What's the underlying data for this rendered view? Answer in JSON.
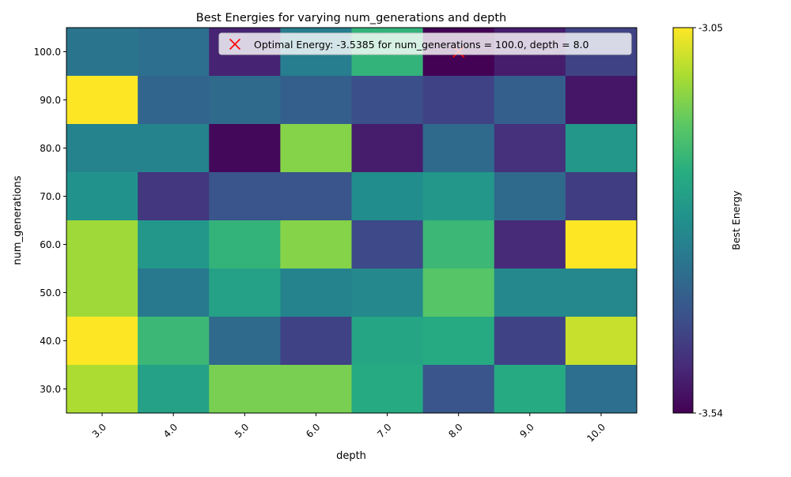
{
  "chart_data": {
    "type": "heatmap",
    "title": "Best Energies for varying num_generations and depth",
    "xlabel": "depth",
    "ylabel": "num_generations",
    "x": [
      "3.0",
      "4.0",
      "5.0",
      "6.0",
      "7.0",
      "8.0",
      "9.0",
      "10.0"
    ],
    "y": [
      "100.0",
      "90.0",
      "80.0",
      "70.0",
      "60.0",
      "50.0",
      "40.0",
      "30.0"
    ],
    "values": [
      [
        -3.35,
        -3.36,
        -3.49,
        -3.33,
        -3.22,
        -3.5385,
        -3.5,
        -3.44
      ],
      [
        -3.05,
        -3.38,
        -3.37,
        -3.39,
        -3.42,
        -3.44,
        -3.39,
        -3.51
      ],
      [
        -3.32,
        -3.32,
        -3.53,
        -3.14,
        -3.5,
        -3.37,
        -3.47,
        -3.28
      ],
      [
        -3.29,
        -3.46,
        -3.41,
        -3.41,
        -3.3,
        -3.28,
        -3.37,
        -3.45
      ],
      [
        -3.12,
        -3.28,
        -3.22,
        -3.14,
        -3.43,
        -3.21,
        -3.48,
        -3.05
      ],
      [
        -3.12,
        -3.34,
        -3.26,
        -3.32,
        -3.31,
        -3.18,
        -3.31,
        -3.31
      ],
      [
        -3.05,
        -3.21,
        -3.37,
        -3.44,
        -3.25,
        -3.24,
        -3.44,
        -3.09
      ],
      [
        -3.11,
        -3.26,
        -3.15,
        -3.15,
        -3.24,
        -3.41,
        -3.24,
        -3.36
      ]
    ],
    "colorbar": {
      "label": "Best Energy",
      "vmin": -3.54,
      "vmax": -3.05,
      "tick_labels": [
        "-3.05",
        "-3.54"
      ],
      "colormap": "viridis"
    },
    "optimal": {
      "depth": 8.0,
      "num_generations": 100.0,
      "legend_label": "Optimal Energy: -3.5385 for num_generations = 100.0, depth = 8.0",
      "marker_color": "#ff0000"
    },
    "legend_position": "top-right",
    "grid": false
  }
}
